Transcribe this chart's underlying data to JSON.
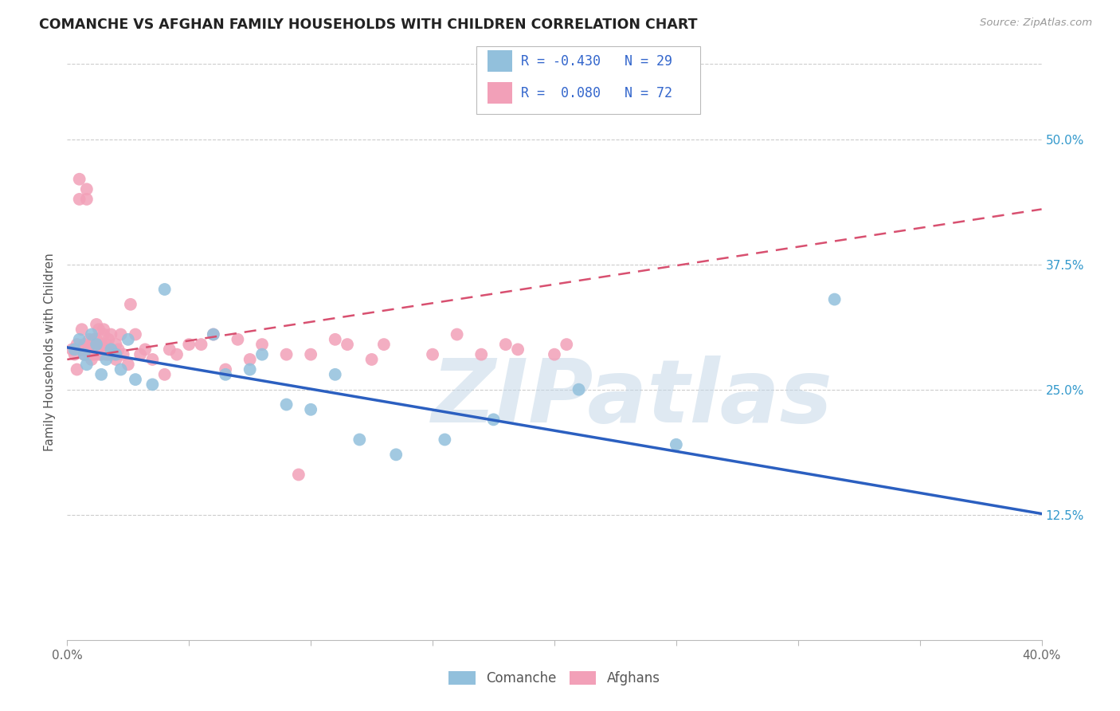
{
  "title": "COMANCHE VS AFGHAN FAMILY HOUSEHOLDS WITH CHILDREN CORRELATION CHART",
  "source": "Source: ZipAtlas.com",
  "ylabel": "Family Households with Children",
  "watermark": "ZIPatlas",
  "xlim": [
    0.0,
    0.4
  ],
  "ylim": [
    0.0,
    0.575
  ],
  "ytick_positions": [
    0.125,
    0.25,
    0.375,
    0.5
  ],
  "ytick_labels": [
    "12.5%",
    "25.0%",
    "37.5%",
    "50.0%"
  ],
  "legend_r_comanche": "-0.430",
  "legend_n_comanche": "29",
  "legend_r_afghan": "0.080",
  "legend_n_afghan": "72",
  "comanche_color": "#92C0DC",
  "afghan_color": "#F2A0B8",
  "comanche_line_color": "#2B5FC0",
  "afghan_line_color": "#D85070",
  "background_color": "#ffffff",
  "grid_color": "#cccccc",
  "comanche_x": [
    0.003,
    0.005,
    0.007,
    0.008,
    0.01,
    0.012,
    0.014,
    0.016,
    0.018,
    0.02,
    0.022,
    0.025,
    0.028,
    0.035,
    0.04,
    0.06,
    0.065,
    0.075,
    0.08,
    0.09,
    0.1,
    0.11,
    0.12,
    0.135,
    0.155,
    0.175,
    0.21,
    0.25,
    0.315
  ],
  "comanche_y": [
    0.29,
    0.3,
    0.285,
    0.275,
    0.305,
    0.295,
    0.265,
    0.28,
    0.29,
    0.285,
    0.27,
    0.3,
    0.26,
    0.255,
    0.35,
    0.305,
    0.265,
    0.27,
    0.285,
    0.235,
    0.23,
    0.265,
    0.2,
    0.185,
    0.2,
    0.22,
    0.25,
    0.195,
    0.34
  ],
  "afghan_x": [
    0.002,
    0.003,
    0.004,
    0.004,
    0.005,
    0.005,
    0.006,
    0.006,
    0.007,
    0.007,
    0.008,
    0.008,
    0.008,
    0.009,
    0.009,
    0.01,
    0.01,
    0.01,
    0.011,
    0.011,
    0.012,
    0.012,
    0.012,
    0.013,
    0.013,
    0.014,
    0.014,
    0.015,
    0.015,
    0.015,
    0.016,
    0.016,
    0.017,
    0.017,
    0.018,
    0.018,
    0.019,
    0.02,
    0.02,
    0.021,
    0.022,
    0.023,
    0.025,
    0.026,
    0.028,
    0.03,
    0.032,
    0.035,
    0.04,
    0.042,
    0.045,
    0.05,
    0.055,
    0.06,
    0.065,
    0.07,
    0.075,
    0.08,
    0.09,
    0.095,
    0.1,
    0.11,
    0.115,
    0.125,
    0.13,
    0.15,
    0.16,
    0.17,
    0.18,
    0.185,
    0.2,
    0.205
  ],
  "afghan_y": [
    0.29,
    0.285,
    0.295,
    0.27,
    0.44,
    0.46,
    0.29,
    0.31,
    0.285,
    0.295,
    0.45,
    0.44,
    0.29,
    0.3,
    0.285,
    0.295,
    0.28,
    0.285,
    0.3,
    0.285,
    0.3,
    0.315,
    0.29,
    0.285,
    0.31,
    0.295,
    0.285,
    0.305,
    0.31,
    0.29,
    0.285,
    0.295,
    0.285,
    0.3,
    0.29,
    0.305,
    0.285,
    0.295,
    0.28,
    0.29,
    0.305,
    0.285,
    0.275,
    0.335,
    0.305,
    0.285,
    0.29,
    0.28,
    0.265,
    0.29,
    0.285,
    0.295,
    0.295,
    0.305,
    0.27,
    0.3,
    0.28,
    0.295,
    0.285,
    0.165,
    0.285,
    0.3,
    0.295,
    0.28,
    0.295,
    0.285,
    0.305,
    0.285,
    0.295,
    0.29,
    0.285,
    0.295
  ],
  "comanche_trend_x0": 0.0,
  "comanche_trend_y0": 0.292,
  "comanche_trend_x1": 0.4,
  "comanche_trend_y1": 0.126,
  "afghan_trend_x0": 0.0,
  "afghan_trend_y0": 0.28,
  "afghan_trend_x1": 0.4,
  "afghan_trend_y1": 0.43
}
